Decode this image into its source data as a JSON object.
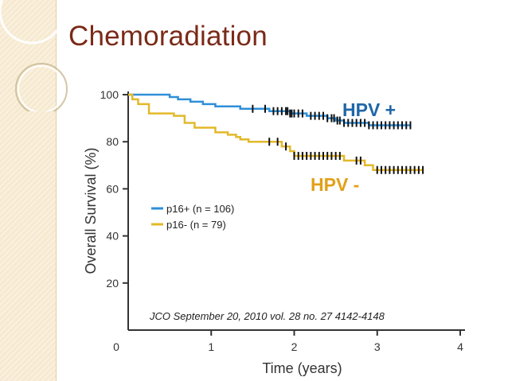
{
  "slide": {
    "title": "Chemoradiation"
  },
  "colors": {
    "title": "#7a2a18",
    "hpv_pos": "#2f8fd8",
    "hpv_neg": "#e2b92a",
    "censor": "#111111",
    "band": "#f6e9cf"
  },
  "chart_data": {
    "type": "line",
    "xlabel": "Time (years)",
    "ylabel": "Overall Survival (%)",
    "xlim": [
      0,
      4
    ],
    "ylim": [
      0,
      100
    ],
    "x_ticks": [
      0,
      1,
      2,
      3,
      4
    ],
    "y_ticks": [
      20,
      40,
      60,
      80,
      100
    ],
    "legend": [
      "p16+  (n = 106)",
      "p16-     (n = 79)"
    ],
    "annotations": {
      "hpv_pos": "HPV +",
      "hpv_neg": "HPV -",
      "citation": "JCO September 20, 2010 vol. 28 no. 27 4142-4148"
    },
    "series": [
      {
        "name": "p16+  (n = 106)",
        "step_points": [
          [
            0,
            100
          ],
          [
            0.5,
            99
          ],
          [
            0.6,
            98
          ],
          [
            0.75,
            97
          ],
          [
            0.9,
            96
          ],
          [
            1.05,
            95
          ],
          [
            1.35,
            94
          ],
          [
            1.7,
            93
          ],
          [
            1.95,
            92
          ],
          [
            2.15,
            91
          ],
          [
            2.4,
            90
          ],
          [
            2.5,
            89
          ],
          [
            2.6,
            88
          ],
          [
            2.9,
            87
          ],
          [
            3.4,
            87
          ]
        ],
        "censor_x": [
          1.5,
          1.65,
          1.75,
          1.8,
          1.85,
          1.9,
          1.92,
          1.95,
          1.97,
          2.0,
          2.05,
          2.1,
          2.2,
          2.25,
          2.3,
          2.35,
          2.4,
          2.45,
          2.48,
          2.52,
          2.55,
          2.6,
          2.65,
          2.7,
          2.75,
          2.8,
          2.85,
          2.9,
          2.95,
          3.0,
          3.05,
          3.1,
          3.15,
          3.2,
          3.25,
          3.3,
          3.35,
          3.4
        ]
      },
      {
        "name": "p16-     (n = 79)",
        "step_points": [
          [
            0,
            100
          ],
          [
            0.05,
            98
          ],
          [
            0.12,
            96
          ],
          [
            0.25,
            92
          ],
          [
            0.55,
            91
          ],
          [
            0.68,
            88
          ],
          [
            0.8,
            86
          ],
          [
            1.05,
            84
          ],
          [
            1.2,
            83
          ],
          [
            1.3,
            82
          ],
          [
            1.35,
            81
          ],
          [
            1.45,
            80
          ],
          [
            1.85,
            78
          ],
          [
            1.95,
            76
          ],
          [
            2.0,
            74
          ],
          [
            2.6,
            72
          ],
          [
            2.85,
            70
          ],
          [
            2.95,
            68
          ],
          [
            3.55,
            68
          ]
        ],
        "censor_x": [
          1.7,
          1.8,
          1.9,
          2.0,
          2.05,
          2.1,
          2.15,
          2.2,
          2.25,
          2.3,
          2.35,
          2.4,
          2.45,
          2.5,
          2.55,
          2.75,
          2.8,
          3.0,
          3.05,
          3.1,
          3.15,
          3.2,
          3.25,
          3.3,
          3.35,
          3.4,
          3.45,
          3.5,
          3.55
        ]
      }
    ]
  }
}
